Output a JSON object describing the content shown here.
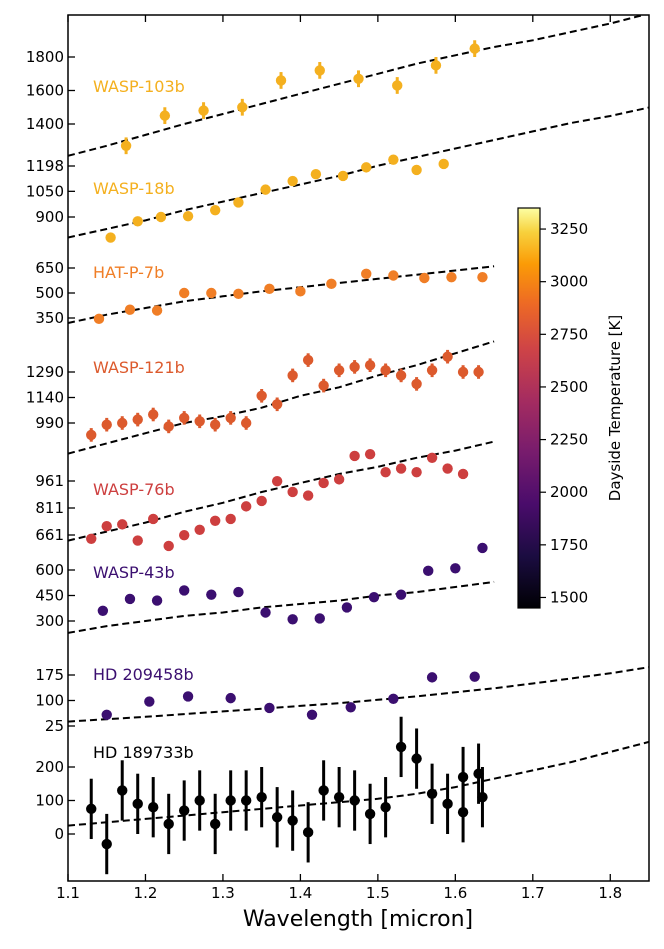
{
  "chart_data": {
    "type": "scatter",
    "xlabel": "Wavelength [micron]",
    "xlim": [
      1.1,
      1.85
    ],
    "x_ticks": [
      "1.1",
      "1.2",
      "1.3",
      "1.4",
      "1.5",
      "1.6",
      "1.7",
      "1.8"
    ],
    "colorbar": {
      "label": "Dayside Temperature [K]",
      "range": [
        1450,
        3350
      ],
      "ticks": [
        "1500",
        "1750",
        "2000",
        "2250",
        "2500",
        "2750",
        "3000",
        "3250"
      ]
    },
    "series": [
      {
        "name": "WASP-103b",
        "color": "#f4b01f",
        "y_ticks": [
          "1400",
          "1600",
          "1800"
        ],
        "points": [
          {
            "x": 1.175,
            "y": 1270,
            "err": 50
          },
          {
            "x": 1.225,
            "y": 1450,
            "err": 50
          },
          {
            "x": 1.275,
            "y": 1480,
            "err": 50
          },
          {
            "x": 1.325,
            "y": 1500,
            "err": 50
          },
          {
            "x": 1.375,
            "y": 1660,
            "err": 50
          },
          {
            "x": 1.425,
            "y": 1720,
            "err": 50
          },
          {
            "x": 1.475,
            "y": 1670,
            "err": 50
          },
          {
            "x": 1.525,
            "y": 1630,
            "err": 50
          },
          {
            "x": 1.575,
            "y": 1750,
            "err": 50
          },
          {
            "x": 1.625,
            "y": 1850,
            "err": 50
          }
        ],
        "model": {
          "x": [
            1.1,
            1.15,
            1.2,
            1.25,
            1.3,
            1.35,
            1.4,
            1.45,
            1.5,
            1.55,
            1.6,
            1.65,
            1.7,
            1.75,
            1.8,
            1.85
          ],
          "y": [
            1210,
            1270,
            1335,
            1400,
            1460,
            1520,
            1580,
            1640,
            1700,
            1760,
            1810,
            1860,
            1900,
            1950,
            2000,
            2060
          ]
        }
      },
      {
        "name": "WASP-18b",
        "color": "#f4b01f",
        "y_ticks": [
          "900",
          "1050",
          "1198"
        ],
        "points": [
          {
            "x": 1.155,
            "y": 780,
            "err": 10
          },
          {
            "x": 1.19,
            "y": 875,
            "err": 10
          },
          {
            "x": 1.22,
            "y": 900,
            "err": 10
          },
          {
            "x": 1.255,
            "y": 905,
            "err": 10
          },
          {
            "x": 1.29,
            "y": 940,
            "err": 10
          },
          {
            "x": 1.32,
            "y": 985,
            "err": 10
          },
          {
            "x": 1.355,
            "y": 1060,
            "err": 10
          },
          {
            "x": 1.39,
            "y": 1110,
            "err": 10
          },
          {
            "x": 1.42,
            "y": 1150,
            "err": 10
          },
          {
            "x": 1.455,
            "y": 1140,
            "err": 10
          },
          {
            "x": 1.485,
            "y": 1190,
            "err": 10
          },
          {
            "x": 1.52,
            "y": 1235,
            "err": 10
          },
          {
            "x": 1.55,
            "y": 1175,
            "err": 10
          },
          {
            "x": 1.585,
            "y": 1210,
            "err": 10
          }
        ],
        "model": {
          "x": [
            1.1,
            1.15,
            1.2,
            1.25,
            1.3,
            1.35,
            1.4,
            1.45,
            1.5,
            1.55,
            1.6,
            1.65,
            1.7,
            1.75,
            1.8,
            1.85
          ],
          "y": [
            780,
            830,
            880,
            940,
            990,
            1040,
            1090,
            1140,
            1200,
            1250,
            1300,
            1350,
            1400,
            1450,
            1490,
            1540
          ]
        }
      },
      {
        "name": "HAT-P-7b",
        "color": "#f07e26",
        "y_ticks": [
          "350",
          "500",
          "650"
        ],
        "points": [
          {
            "x": 1.14,
            "y": 345,
            "err": 15
          },
          {
            "x": 1.18,
            "y": 400,
            "err": 15
          },
          {
            "x": 1.215,
            "y": 395,
            "err": 15
          },
          {
            "x": 1.25,
            "y": 500,
            "err": 15
          },
          {
            "x": 1.285,
            "y": 500,
            "err": 15
          },
          {
            "x": 1.32,
            "y": 495,
            "err": 15
          },
          {
            "x": 1.36,
            "y": 525,
            "err": 15
          },
          {
            "x": 1.4,
            "y": 510,
            "err": 15
          },
          {
            "x": 1.44,
            "y": 555,
            "err": 15
          },
          {
            "x": 1.485,
            "y": 615,
            "err": 15
          },
          {
            "x": 1.52,
            "y": 605,
            "err": 15
          },
          {
            "x": 1.56,
            "y": 590,
            "err": 15
          },
          {
            "x": 1.595,
            "y": 595,
            "err": 15
          },
          {
            "x": 1.635,
            "y": 595,
            "err": 15
          }
        ],
        "model": {
          "x": [
            1.1,
            1.15,
            1.2,
            1.25,
            1.3,
            1.35,
            1.4,
            1.45,
            1.5,
            1.55,
            1.6,
            1.65
          ],
          "y": [
            320,
            370,
            410,
            450,
            480,
            510,
            535,
            560,
            585,
            610,
            635,
            660
          ]
        }
      },
      {
        "name": "WASP-121b",
        "color": "#dc5a2d",
        "y_ticks": [
          "990",
          "1140",
          "1290"
        ],
        "points": [
          {
            "x": 1.13,
            "y": 920,
            "err": 40
          },
          {
            "x": 1.15,
            "y": 980,
            "err": 40
          },
          {
            "x": 1.17,
            "y": 990,
            "err": 40
          },
          {
            "x": 1.19,
            "y": 1010,
            "err": 40
          },
          {
            "x": 1.21,
            "y": 1040,
            "err": 40
          },
          {
            "x": 1.23,
            "y": 970,
            "err": 40
          },
          {
            "x": 1.25,
            "y": 1020,
            "err": 40
          },
          {
            "x": 1.27,
            "y": 1000,
            "err": 40
          },
          {
            "x": 1.29,
            "y": 980,
            "err": 40
          },
          {
            "x": 1.31,
            "y": 1020,
            "err": 40
          },
          {
            "x": 1.33,
            "y": 990,
            "err": 40
          },
          {
            "x": 1.35,
            "y": 1150,
            "err": 40
          },
          {
            "x": 1.37,
            "y": 1100,
            "err": 40
          },
          {
            "x": 1.39,
            "y": 1270,
            "err": 40
          },
          {
            "x": 1.41,
            "y": 1360,
            "err": 40
          },
          {
            "x": 1.43,
            "y": 1210,
            "err": 40
          },
          {
            "x": 1.45,
            "y": 1300,
            "err": 40
          },
          {
            "x": 1.47,
            "y": 1320,
            "err": 40
          },
          {
            "x": 1.49,
            "y": 1330,
            "err": 40
          },
          {
            "x": 1.51,
            "y": 1300,
            "err": 40
          },
          {
            "x": 1.53,
            "y": 1270,
            "err": 40
          },
          {
            "x": 1.55,
            "y": 1220,
            "err": 40
          },
          {
            "x": 1.57,
            "y": 1300,
            "err": 40
          },
          {
            "x": 1.59,
            "y": 1380,
            "err": 40
          },
          {
            "x": 1.61,
            "y": 1290,
            "err": 40
          },
          {
            "x": 1.63,
            "y": 1290,
            "err": 40
          }
        ],
        "model": {
          "x": [
            1.1,
            1.15,
            1.2,
            1.25,
            1.3,
            1.35,
            1.4,
            1.45,
            1.5,
            1.55,
            1.6,
            1.65
          ],
          "y": [
            810,
            870,
            930,
            990,
            1030,
            1080,
            1150,
            1200,
            1270,
            1330,
            1400,
            1470
          ]
        }
      },
      {
        "name": "WASP-76b",
        "color": "#cd3f3f",
        "y_ticks": [
          "661",
          "811",
          "961"
        ],
        "points": [
          {
            "x": 1.13,
            "y": 640,
            "err": 25
          },
          {
            "x": 1.15,
            "y": 710,
            "err": 25
          },
          {
            "x": 1.17,
            "y": 720,
            "err": 25
          },
          {
            "x": 1.19,
            "y": 630,
            "err": 25
          },
          {
            "x": 1.21,
            "y": 750,
            "err": 25
          },
          {
            "x": 1.23,
            "y": 600,
            "err": 25
          },
          {
            "x": 1.25,
            "y": 660,
            "err": 25
          },
          {
            "x": 1.27,
            "y": 690,
            "err": 25
          },
          {
            "x": 1.29,
            "y": 740,
            "err": 25
          },
          {
            "x": 1.31,
            "y": 750,
            "err": 25
          },
          {
            "x": 1.33,
            "y": 820,
            "err": 25
          },
          {
            "x": 1.35,
            "y": 850,
            "err": 25
          },
          {
            "x": 1.37,
            "y": 960,
            "err": 25
          },
          {
            "x": 1.39,
            "y": 900,
            "err": 25
          },
          {
            "x": 1.41,
            "y": 880,
            "err": 25
          },
          {
            "x": 1.43,
            "y": 950,
            "err": 25
          },
          {
            "x": 1.45,
            "y": 970,
            "err": 25
          },
          {
            "x": 1.47,
            "y": 1100,
            "err": 25
          },
          {
            "x": 1.49,
            "y": 1110,
            "err": 25
          },
          {
            "x": 1.51,
            "y": 1010,
            "err": 25
          },
          {
            "x": 1.53,
            "y": 1030,
            "err": 25
          },
          {
            "x": 1.55,
            "y": 1010,
            "err": 25
          },
          {
            "x": 1.57,
            "y": 1090,
            "err": 25
          },
          {
            "x": 1.59,
            "y": 1030,
            "err": 25
          },
          {
            "x": 1.61,
            "y": 1000,
            "err": 25
          }
        ],
        "model": {
          "x": [
            1.1,
            1.15,
            1.2,
            1.25,
            1.3,
            1.35,
            1.4,
            1.45,
            1.5,
            1.55,
            1.6,
            1.65
          ],
          "y": [
            630,
            680,
            730,
            790,
            840,
            900,
            950,
            1000,
            1040,
            1090,
            1130,
            1180
          ]
        }
      },
      {
        "name": "WASP-43b",
        "color": "#3b0f70",
        "y_ticks": [
          "300",
          "450",
          "600"
        ],
        "points": [
          {
            "x": 1.145,
            "y": 360,
            "err": 25
          },
          {
            "x": 1.18,
            "y": 430,
            "err": 15
          },
          {
            "x": 1.215,
            "y": 420,
            "err": 15
          },
          {
            "x": 1.25,
            "y": 480,
            "err": 10
          },
          {
            "x": 1.285,
            "y": 455,
            "err": 10
          },
          {
            "x": 1.32,
            "y": 470,
            "err": 10
          },
          {
            "x": 1.355,
            "y": 350,
            "err": 10
          },
          {
            "x": 1.39,
            "y": 310,
            "err": 10
          },
          {
            "x": 1.425,
            "y": 315,
            "err": 10
          },
          {
            "x": 1.46,
            "y": 380,
            "err": 10
          },
          {
            "x": 1.495,
            "y": 440,
            "err": 10
          },
          {
            "x": 1.53,
            "y": 455,
            "err": 10
          },
          {
            "x": 1.565,
            "y": 595,
            "err": 10
          },
          {
            "x": 1.6,
            "y": 610,
            "err": 10
          },
          {
            "x": 1.635,
            "y": 730,
            "err": 25
          }
        ],
        "model": {
          "x": [
            1.1,
            1.15,
            1.2,
            1.25,
            1.3,
            1.35,
            1.4,
            1.45,
            1.5,
            1.55,
            1.6,
            1.65
          ],
          "y": [
            230,
            270,
            300,
            330,
            350,
            380,
            400,
            420,
            450,
            470,
            500,
            530
          ]
        }
      },
      {
        "name": "HD 209458b",
        "color": "#3b0f70",
        "y_ticks": [
          "25",
          "100",
          "175"
        ],
        "points": [
          {
            "x": 1.15,
            "y": 58,
            "err": 5
          },
          {
            "x": 1.205,
            "y": 97,
            "err": 5
          },
          {
            "x": 1.255,
            "y": 112,
            "err": 5
          },
          {
            "x": 1.31,
            "y": 107,
            "err": 5
          },
          {
            "x": 1.36,
            "y": 78,
            "err": 5
          },
          {
            "x": 1.415,
            "y": 58,
            "err": 5
          },
          {
            "x": 1.465,
            "y": 80,
            "err": 5
          },
          {
            "x": 1.52,
            "y": 105,
            "err": 5
          },
          {
            "x": 1.57,
            "y": 168,
            "err": 5
          },
          {
            "x": 1.625,
            "y": 170,
            "err": 5
          }
        ],
        "model": {
          "x": [
            1.1,
            1.15,
            1.2,
            1.25,
            1.3,
            1.35,
            1.4,
            1.45,
            1.5,
            1.55,
            1.6,
            1.65,
            1.7,
            1.75,
            1.8,
            1.85
          ],
          "y": [
            38,
            45,
            52,
            60,
            68,
            76,
            84,
            92,
            102,
            112,
            124,
            136,
            150,
            165,
            180,
            198
          ]
        }
      },
      {
        "name": "HD 189733b",
        "color": "#000000",
        "y_ticks": [
          "0",
          "100",
          "200"
        ],
        "points": [
          {
            "x": 1.13,
            "y": 75,
            "err": 90
          },
          {
            "x": 1.15,
            "y": -30,
            "err": 90
          },
          {
            "x": 1.17,
            "y": 130,
            "err": 90
          },
          {
            "x": 1.19,
            "y": 90,
            "err": 90
          },
          {
            "x": 1.21,
            "y": 80,
            "err": 90
          },
          {
            "x": 1.23,
            "y": 30,
            "err": 90
          },
          {
            "x": 1.25,
            "y": 70,
            "err": 90
          },
          {
            "x": 1.27,
            "y": 100,
            "err": 90
          },
          {
            "x": 1.29,
            "y": 30,
            "err": 90
          },
          {
            "x": 1.31,
            "y": 100,
            "err": 90
          },
          {
            "x": 1.33,
            "y": 100,
            "err": 90
          },
          {
            "x": 1.35,
            "y": 110,
            "err": 90
          },
          {
            "x": 1.37,
            "y": 50,
            "err": 90
          },
          {
            "x": 1.39,
            "y": 40,
            "err": 90
          },
          {
            "x": 1.41,
            "y": 5,
            "err": 90
          },
          {
            "x": 1.43,
            "y": 130,
            "err": 90
          },
          {
            "x": 1.45,
            "y": 110,
            "err": 90
          },
          {
            "x": 1.47,
            "y": 100,
            "err": 90
          },
          {
            "x": 1.49,
            "y": 60,
            "err": 90
          },
          {
            "x": 1.51,
            "y": 80,
            "err": 90
          },
          {
            "x": 1.53,
            "y": 260,
            "err": 90
          },
          {
            "x": 1.55,
            "y": 225,
            "err": 90
          },
          {
            "x": 1.57,
            "y": 120,
            "err": 90
          },
          {
            "x": 1.59,
            "y": 90,
            "err": 90
          },
          {
            "x": 1.61,
            "y": 170,
            "err": 90
          },
          {
            "x": 1.63,
            "y": 180,
            "err": 90
          },
          {
            "x": 1.61,
            "y": 65,
            "err": 90
          },
          {
            "x": 1.635,
            "y": 110,
            "err": 90
          }
        ],
        "model": {
          "x": [
            1.1,
            1.15,
            1.2,
            1.25,
            1.3,
            1.35,
            1.4,
            1.45,
            1.5,
            1.55,
            1.6,
            1.65,
            1.7,
            1.75,
            1.8,
            1.85
          ],
          "y": [
            25,
            35,
            45,
            55,
            65,
            75,
            85,
            95,
            105,
            120,
            140,
            165,
            190,
            215,
            245,
            275
          ]
        }
      }
    ]
  }
}
